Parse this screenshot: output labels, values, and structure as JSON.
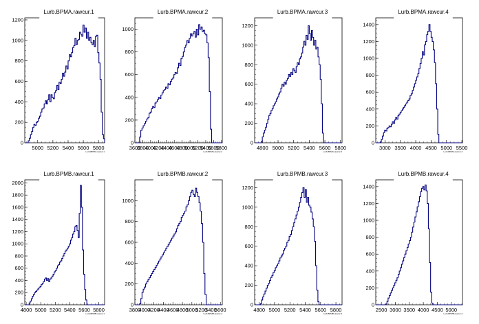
{
  "chart_data": [
    {
      "type": "histogram",
      "title": "Lurb.BPMA.rawcur.1",
      "xlabel": "Lurb.BPMA.rawcur.1",
      "xlim": [
        4830,
        5880
      ],
      "ylim": [
        0,
        1220
      ],
      "xticks": [
        "5000",
        "5200",
        "5400",
        "5600",
        "5800"
      ],
      "xtick_values": [
        5000,
        5200,
        5400,
        5600,
        5800
      ],
      "yticks": [
        "0",
        "200",
        "400",
        "600",
        "800",
        "1000",
        "1200"
      ],
      "ytick_values": [
        0,
        200,
        400,
        600,
        800,
        1000,
        1200
      ],
      "x_start": 4830,
      "bin_width": 15,
      "values": [
        0,
        0,
        0,
        20,
        45,
        80,
        110,
        150,
        180,
        170,
        200,
        210,
        240,
        260,
        300,
        330,
        340,
        380,
        410,
        380,
        420,
        470,
        400,
        470,
        440,
        430,
        490,
        510,
        560,
        520,
        590,
        580,
        620,
        680,
        650,
        690,
        750,
        720,
        800,
        860,
        840,
        880,
        930,
        950,
        1020,
        960,
        1000,
        1010,
        1080,
        1060,
        1040,
        1150,
        1080,
        1120,
        1020,
        1080,
        1000,
        1030,
        980,
        960,
        1000,
        940,
        1040,
        1050,
        880,
        780,
        620,
        300,
        80,
        40,
        0
      ]
    },
    {
      "type": "histogram",
      "title": "Lurb.BPMA.rawcur.2",
      "xlabel": "Lurb.BPMA.rawcur.2",
      "xlim": [
        3600,
        5820
      ],
      "ylim": [
        0,
        1100
      ],
      "xticks": [
        "3600",
        "3800",
        "4000",
        "4200",
        "4400",
        "4600",
        "4800",
        "5000",
        "5200",
        "5400",
        "5600",
        "5800"
      ],
      "xtick_values": [
        3600,
        3800,
        4000,
        4200,
        4400,
        4600,
        4800,
        5000,
        5200,
        5400,
        5600,
        5800
      ],
      "yticks": [
        "0",
        "200",
        "400",
        "600",
        "800",
        "1000"
      ],
      "ytick_values": [
        0,
        200,
        400,
        600,
        800,
        1000
      ],
      "x_start": 3600,
      "bin_width": 30,
      "values": [
        0,
        0,
        0,
        0,
        50,
        110,
        130,
        150,
        170,
        190,
        210,
        220,
        260,
        270,
        300,
        320,
        310,
        350,
        360,
        380,
        400,
        390,
        420,
        440,
        460,
        470,
        490,
        480,
        520,
        510,
        540,
        560,
        570,
        600,
        620,
        610,
        660,
        700,
        680,
        740,
        760,
        800,
        840,
        860,
        900,
        880,
        920,
        960,
        940,
        960,
        980,
        930,
        1000,
        950,
        1040,
        1000,
        1020,
        980,
        990,
        960,
        950,
        880,
        750,
        450,
        120,
        0,
        0,
        0,
        0,
        0,
        0,
        0,
        0,
        0
      ]
    },
    {
      "type": "histogram",
      "title": "Lurb.BPMA.rawcur.3",
      "xlabel": "Lurb.BPMA.rawcur.3",
      "xlim": [
        4700,
        5820
      ],
      "ylim": [
        0,
        1280
      ],
      "xticks": [
        "4800",
        "5000",
        "5200",
        "5400",
        "5600",
        "5800"
      ],
      "xtick_values": [
        4800,
        5000,
        5200,
        5400,
        5600,
        5800
      ],
      "yticks": [
        "0",
        "200",
        "400",
        "600",
        "800",
        "1000",
        "1200"
      ],
      "ytick_values": [
        0,
        200,
        400,
        600,
        800,
        1000,
        1200
      ],
      "x_start": 4700,
      "bin_width": 14,
      "values": [
        0,
        0,
        0,
        0,
        0,
        0,
        10,
        60,
        100,
        130,
        160,
        200,
        240,
        280,
        300,
        330,
        350,
        380,
        400,
        420,
        450,
        470,
        500,
        520,
        560,
        600,
        580,
        620,
        600,
        640,
        660,
        700,
        680,
        720,
        700,
        760,
        740,
        720,
        780,
        820,
        800,
        860,
        880,
        920,
        980,
        1040,
        1000,
        1100,
        1060,
        1200,
        1120,
        1050,
        1150,
        1080,
        1000,
        1050,
        960,
        980,
        880,
        800,
        650,
        400,
        100,
        0,
        0,
        0,
        0,
        0,
        0,
        0,
        0,
        0,
        0,
        0,
        0,
        0,
        0,
        0,
        0,
        0
      ]
    },
    {
      "type": "histogram",
      "title": "Lurb.BPMA.rawcur.4",
      "xlabel": "Lurb.BPMA.rawcur.4",
      "xlim": [
        2700,
        5520
      ],
      "ylim": [
        0,
        1480
      ],
      "xticks": [
        "3000",
        "3500",
        "4000",
        "4500",
        "5000",
        "5500"
      ],
      "xtick_values": [
        3000,
        3500,
        4000,
        4500,
        5000,
        5500
      ],
      "yticks": [
        "0",
        "200",
        "400",
        "600",
        "800",
        "1000",
        "1200",
        "1400"
      ],
      "ytick_values": [
        0,
        200,
        400,
        600,
        800,
        1000,
        1200,
        1400
      ],
      "x_start": 2700,
      "bin_width": 36,
      "values": [
        0,
        0,
        0,
        0,
        10,
        40,
        80,
        120,
        150,
        140,
        170,
        180,
        200,
        190,
        220,
        250,
        230,
        270,
        300,
        280,
        320,
        340,
        360,
        380,
        400,
        420,
        440,
        460,
        480,
        500,
        520,
        560,
        580,
        620,
        660,
        700,
        740,
        780,
        820,
        880,
        940,
        1000,
        1080,
        1040,
        1160,
        1200,
        1280,
        1320,
        1400,
        1320,
        1250,
        1200,
        1100,
        950,
        700,
        400,
        100,
        0,
        0,
        0,
        0,
        0,
        0,
        0,
        0,
        0,
        0,
        0,
        0,
        0,
        0,
        0,
        0,
        0,
        0,
        0,
        0,
        0
      ]
    },
    {
      "type": "histogram",
      "title": "Lurb.BPMB.rawcur.1",
      "xlabel": "Lurb.BPMB.rawcur.1",
      "xlim": [
        4780,
        5880
      ],
      "ylim": [
        0,
        2050
      ],
      "xticks": [
        "4800",
        "5000",
        "5200",
        "5400",
        "5600",
        "5800"
      ],
      "xtick_values": [
        4800,
        5000,
        5200,
        5400,
        5600,
        5800
      ],
      "yticks": [
        "0",
        "200",
        "400",
        "600",
        "800",
        "1000",
        "1200",
        "1400",
        "1600",
        "1800",
        "2000"
      ],
      "ytick_values": [
        0,
        200,
        400,
        600,
        800,
        1000,
        1200,
        1400,
        1600,
        1800,
        2000
      ],
      "x_start": 4780,
      "bin_width": 15,
      "values": [
        0,
        0,
        0,
        0,
        30,
        60,
        100,
        140,
        170,
        200,
        220,
        240,
        260,
        280,
        300,
        330,
        350,
        380,
        420,
        440,
        400,
        430,
        380,
        420,
        440,
        470,
        500,
        540,
        560,
        600,
        640,
        660,
        700,
        720,
        760,
        800,
        840,
        880,
        900,
        930,
        960,
        1000,
        1060,
        1100,
        1160,
        1200,
        1280,
        1300,
        1220,
        1100,
        1500,
        1960,
        1600,
        900,
        500,
        250,
        80,
        0,
        0,
        0,
        0,
        0,
        0,
        0,
        0,
        0,
        0,
        0,
        0,
        0,
        0,
        0,
        0,
        0
      ]
    },
    {
      "type": "histogram",
      "title": "Lurb.BPMB.rawcur.2",
      "xlabel": "Lurb.BPMB.rawcur.2",
      "xlim": [
        3800,
        5640
      ],
      "ylim": [
        0,
        1200
      ],
      "xticks": [
        "3800",
        "4000",
        "4200",
        "4400",
        "4600",
        "4800",
        "5000",
        "5200",
        "5400",
        "5600"
      ],
      "xtick_values": [
        3800,
        4000,
        4200,
        4400,
        4600,
        4800,
        5000,
        5200,
        5400,
        5600
      ],
      "yticks": [
        "0",
        "200",
        "400",
        "600",
        "800",
        "1000"
      ],
      "ytick_values": [
        0,
        200,
        400,
        600,
        800,
        1000
      ],
      "x_start": 3800,
      "bin_width": 25,
      "values": [
        0,
        0,
        0,
        0,
        10,
        60,
        120,
        150,
        170,
        200,
        220,
        240,
        260,
        280,
        300,
        320,
        340,
        360,
        380,
        400,
        420,
        440,
        460,
        480,
        500,
        520,
        540,
        560,
        580,
        600,
        620,
        640,
        660,
        680,
        700,
        730,
        760,
        780,
        800,
        840,
        860,
        880,
        900,
        940,
        960,
        1000,
        1040,
        1080,
        1100,
        1060,
        1040,
        1120,
        1080,
        1040,
        980,
        900,
        780,
        600,
        300,
        100,
        0,
        0,
        0,
        0,
        0,
        0,
        0,
        0,
        0,
        0,
        0,
        0,
        0,
        0
      ]
    },
    {
      "type": "histogram",
      "title": "Lurb.BPMB.rawcur.3",
      "xlabel": "Lurb.BPMB.rawcur.3",
      "xlim": [
        4740,
        5880
      ],
      "ylim": [
        0,
        1280
      ],
      "xticks": [
        "4800",
        "5000",
        "5200",
        "5400",
        "5600",
        "5800"
      ],
      "xtick_values": [
        4800,
        5000,
        5200,
        5400,
        5600,
        5800
      ],
      "yticks": [
        "0",
        "200",
        "400",
        "600",
        "800",
        "1000",
        "1200"
      ],
      "ytick_values": [
        0,
        200,
        400,
        600,
        800,
        1000,
        1200
      ],
      "x_start": 4740,
      "bin_width": 15,
      "values": [
        0,
        0,
        0,
        0,
        0,
        10,
        50,
        80,
        110,
        140,
        170,
        200,
        220,
        250,
        280,
        300,
        330,
        350,
        380,
        400,
        420,
        450,
        480,
        500,
        520,
        560,
        580,
        600,
        640,
        660,
        700,
        720,
        760,
        800,
        840,
        880,
        920,
        960,
        1000,
        1050,
        1100,
        1150,
        1200,
        1100,
        1180,
        1050,
        1100,
        1020,
        1000,
        950,
        880,
        800,
        650,
        400,
        150,
        30,
        0,
        0,
        0,
        0,
        0,
        0,
        0,
        0,
        0,
        0,
        0,
        0,
        0,
        0,
        0,
        0,
        0,
        0,
        0,
        0
      ]
    },
    {
      "type": "histogram",
      "title": "Lurb.BPMB.rawcur.4",
      "xlabel": "Lurb.BPMB.rawcur.4",
      "xlim": [
        2300,
        5400
      ],
      "ylim": [
        0,
        1480
      ],
      "xticks": [
        "2500",
        "3000",
        "3500",
        "4000",
        "4500",
        "5000"
      ],
      "xtick_values": [
        2500,
        3000,
        3500,
        4000,
        4500,
        5000
      ],
      "yticks": [
        "0",
        "200",
        "400",
        "600",
        "800",
        "1000",
        "1200",
        "1400"
      ],
      "ytick_values": [
        0,
        200,
        400,
        600,
        800,
        1000,
        1200,
        1400
      ],
      "x_start": 2300,
      "bin_width": 40,
      "values": [
        0,
        0,
        0,
        0,
        0,
        0,
        0,
        0,
        0,
        10,
        40,
        80,
        110,
        140,
        170,
        200,
        230,
        260,
        290,
        320,
        360,
        400,
        440,
        480,
        520,
        560,
        600,
        640,
        680,
        720,
        760,
        800,
        860,
        920,
        980,
        1040,
        1100,
        1160,
        1220,
        1280,
        1340,
        1380,
        1400,
        1360,
        1420,
        1350,
        1200,
        900,
        500,
        150,
        20,
        0,
        0,
        0,
        0,
        0,
        0,
        0,
        0,
        0,
        0,
        0,
        0,
        0,
        0,
        0,
        0,
        0,
        0,
        0,
        0,
        0,
        0,
        0,
        0,
        0,
        0,
        0
      ]
    }
  ]
}
